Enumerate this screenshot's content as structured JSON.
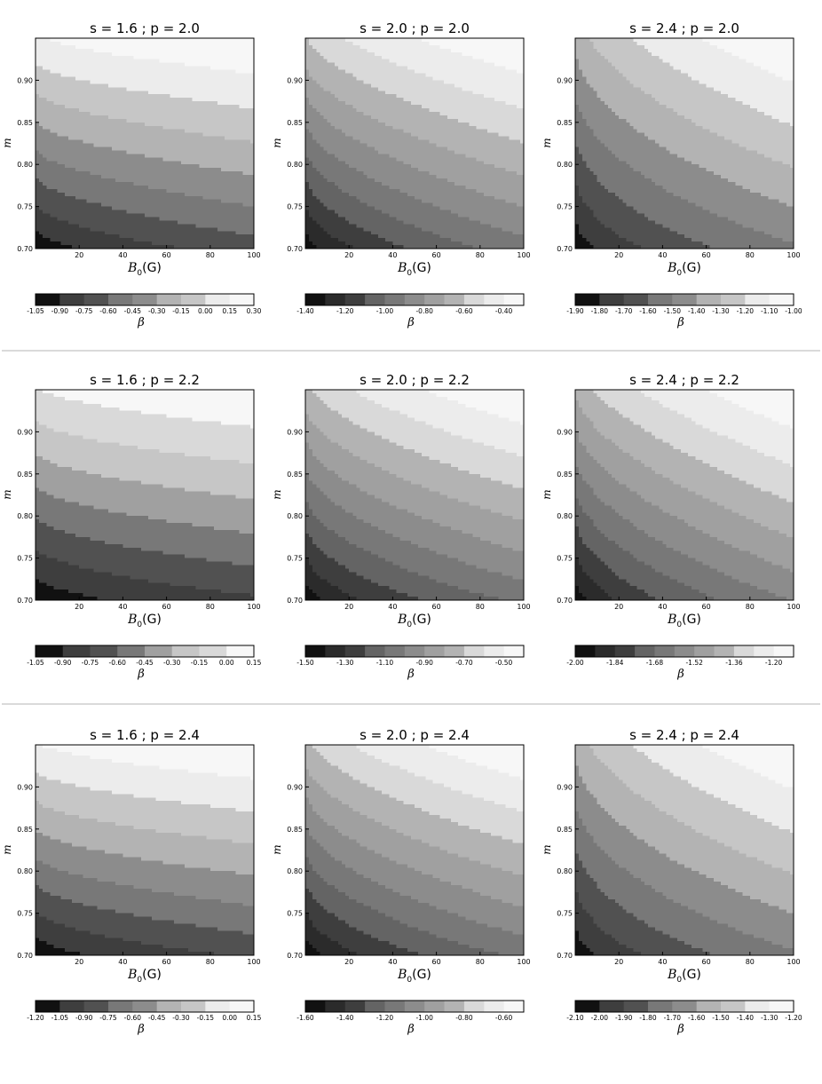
{
  "figure": {
    "xlabel_main": "B",
    "xlabel_sub": "0",
    "xlabel_unit": "(G)",
    "ylabel": "m",
    "colorbar_label": "β",
    "x_ticks": [
      "20",
      "40",
      "60",
      "80",
      "100"
    ],
    "y_ticks": [
      "0.70",
      "0.75",
      "0.80",
      "0.85",
      "0.90"
    ],
    "colormap": [
      "#111111",
      "#2b2b2b",
      "#3e3e3e",
      "#515151",
      "#646464",
      "#787878",
      "#8c8c8c",
      "#a0a0a0",
      "#b3b3b3",
      "#c6c6c6",
      "#d9d9d9",
      "#ececec",
      "#f7f7f7"
    ]
  },
  "chart_data": [
    {
      "type": "contour",
      "title": "s = 1.6 ; p = 2.0",
      "xlim": [
        0,
        100
      ],
      "ylim": [
        0.7,
        0.95
      ],
      "levels": [
        -1.05,
        -0.9,
        -0.75,
        -0.6,
        -0.45,
        -0.3,
        -0.15,
        0.0,
        0.15,
        0.3
      ],
      "colorbar_ticks": [
        "-1.05",
        "-0.90",
        "-0.75",
        "-0.60",
        "-0.45",
        "-0.30",
        "-0.15",
        "0.00",
        "0.15",
        "0.30"
      ],
      "corners": {
        "bottom_left": -1.05,
        "bottom_right": -0.68,
        "top_left": 0.12,
        "top_right": 0.3
      }
    },
    {
      "type": "contour",
      "title": "s = 2.0 ; p = 2.0",
      "xlim": [
        0,
        100
      ],
      "ylim": [
        0.7,
        0.95
      ],
      "levels": [
        -1.4,
        -1.3,
        -1.2,
        -1.1,
        -1.0,
        -0.9,
        -0.8,
        -0.7,
        -0.6,
        -0.5,
        -0.4,
        -0.3
      ],
      "colorbar_ticks": [
        "-1.40",
        "-1.20",
        "-1.00",
        "-0.80",
        "-0.60",
        "-0.40"
      ],
      "corners": {
        "bottom_left": -1.4,
        "bottom_right": -0.95,
        "top_left": -0.62,
        "top_right": -0.3
      }
    },
    {
      "type": "contour",
      "title": "s = 2.4 ; p = 2.0",
      "xlim": [
        0,
        100
      ],
      "ylim": [
        0.7,
        0.95
      ],
      "levels": [
        -1.9,
        -1.8,
        -1.7,
        -1.6,
        -1.5,
        -1.4,
        -1.3,
        -1.2,
        -1.1,
        -1.0
      ],
      "colorbar_ticks": [
        "-1.90",
        "-1.80",
        "-1.70",
        "-1.60",
        "-1.50",
        "-1.40",
        "-1.30",
        "-1.20",
        "-1.10",
        "-1.00"
      ],
      "corners": {
        "bottom_left": -1.9,
        "bottom_right": -1.52,
        "top_left": -1.38,
        "top_right": -1.0
      }
    },
    {
      "type": "contour",
      "title": "s = 1.6 ; p = 2.2",
      "xlim": [
        0,
        100
      ],
      "ylim": [
        0.7,
        0.95
      ],
      "levels": [
        -1.05,
        -0.9,
        -0.75,
        -0.6,
        -0.45,
        -0.3,
        -0.15,
        0.0,
        0.15
      ],
      "colorbar_ticks": [
        "-1.05",
        "-0.90",
        "-0.75",
        "-0.60",
        "-0.45",
        "-0.30",
        "-0.15",
        "0.00",
        "0.15"
      ],
      "corners": {
        "bottom_left": -1.05,
        "bottom_right": -0.78,
        "top_left": -0.02,
        "top_right": 0.15
      }
    },
    {
      "type": "contour",
      "title": "s = 2.0 ; p = 2.2",
      "xlim": [
        0,
        100
      ],
      "ylim": [
        0.7,
        0.95
      ],
      "levels": [
        -1.5,
        -1.4,
        -1.3,
        -1.2,
        -1.1,
        -1.0,
        -0.9,
        -0.8,
        -0.7,
        -0.6,
        -0.5,
        -0.4
      ],
      "colorbar_ticks": [
        "-1.50",
        "-1.30",
        "-1.10",
        "-0.90",
        "-0.70",
        "-0.50"
      ],
      "corners": {
        "bottom_left": -1.5,
        "bottom_right": -1.08,
        "top_left": -0.75,
        "top_right": -0.4
      }
    },
    {
      "type": "contour",
      "title": "s = 2.4 ; p = 2.2",
      "xlim": [
        0,
        100
      ],
      "ylim": [
        0.7,
        0.95
      ],
      "levels": [
        -2.0,
        -1.92,
        -1.84,
        -1.76,
        -1.68,
        -1.6,
        -1.52,
        -1.44,
        -1.36,
        -1.28,
        -1.2,
        -1.12
      ],
      "colorbar_ticks": [
        "-2.00",
        "-1.84",
        "-1.68",
        "-1.52",
        "-1.36",
        "-1.20"
      ],
      "corners": {
        "bottom_left": -2.0,
        "bottom_right": -1.6,
        "top_left": -1.44,
        "top_right": -1.12
      }
    },
    {
      "type": "contour",
      "title": "s = 1.6 ; p = 2.4",
      "xlim": [
        0,
        100
      ],
      "ylim": [
        0.7,
        0.95
      ],
      "levels": [
        -1.2,
        -1.05,
        -0.9,
        -0.75,
        -0.6,
        -0.45,
        -0.3,
        -0.15,
        0.0,
        0.15
      ],
      "colorbar_ticks": [
        "-1.20",
        "-1.05",
        "-0.90",
        "-0.75",
        "-0.60",
        "-0.45",
        "-0.30",
        "-0.15",
        "0.00",
        "0.15"
      ],
      "corners": {
        "bottom_left": -1.2,
        "bottom_right": -0.88,
        "top_left": -0.02,
        "top_right": 0.15
      }
    },
    {
      "type": "contour",
      "title": "s = 2.0 ; p = 2.4",
      "xlim": [
        0,
        100
      ],
      "ylim": [
        0.7,
        0.95
      ],
      "levels": [
        -1.6,
        -1.5,
        -1.4,
        -1.3,
        -1.2,
        -1.1,
        -1.0,
        -0.9,
        -0.8,
        -0.7,
        -0.6,
        -0.5
      ],
      "colorbar_ticks": [
        "-1.60",
        "-1.40",
        "-1.20",
        "-1.00",
        "-0.80",
        "-0.60"
      ],
      "corners": {
        "bottom_left": -1.6,
        "bottom_right": -1.18,
        "top_left": -0.85,
        "top_right": -0.5
      }
    },
    {
      "type": "contour",
      "title": "s = 2.4 ; p = 2.4",
      "xlim": [
        0,
        100
      ],
      "ylim": [
        0.7,
        0.95
      ],
      "levels": [
        -2.1,
        -2.0,
        -1.9,
        -1.8,
        -1.7,
        -1.6,
        -1.5,
        -1.4,
        -1.3,
        -1.2
      ],
      "colorbar_ticks": [
        "-2.10",
        "-2.00",
        "-1.90",
        "-1.80",
        "-1.70",
        "-1.60",
        "-1.50",
        "-1.40",
        "-1.30",
        "-1.20"
      ],
      "corners": {
        "bottom_left": -2.1,
        "bottom_right": -1.72,
        "top_left": -1.58,
        "top_right": -1.2
      }
    }
  ]
}
